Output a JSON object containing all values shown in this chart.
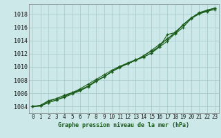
{
  "title": "Graphe pression niveau de la mer (hPa)",
  "bg_color": "#cce8e8",
  "grid_color": "#aacccc",
  "line_color": "#1a5c1a",
  "ylim": [
    1003.0,
    1019.5
  ],
  "xlim": [
    -0.5,
    23.5
  ],
  "yticks": [
    1004,
    1006,
    1008,
    1010,
    1012,
    1014,
    1016,
    1018
  ],
  "x_labels": [
    "0",
    "1",
    "2",
    "3",
    "4",
    "5",
    "6",
    "7",
    "8",
    "9",
    "10",
    "11",
    "12",
    "13",
    "14",
    "15",
    "16",
    "17",
    "18",
    "19",
    "20",
    "21",
    "22",
    "23"
  ],
  "series": [
    [
      1004.0,
      1004.1,
      1004.6,
      1005.0,
      1005.4,
      1005.9,
      1006.4,
      1007.0,
      1007.8,
      1008.5,
      1009.3,
      1009.9,
      1010.5,
      1011.0,
      1011.5,
      1012.1,
      1013.2,
      1014.3,
      1015.0,
      1016.0,
      1017.3,
      1018.0,
      1018.4,
      1018.7
    ],
    [
      1004.0,
      1004.1,
      1004.6,
      1005.0,
      1005.5,
      1006.1,
      1006.7,
      1007.4,
      1008.1,
      1008.8,
      1009.5,
      1010.1,
      1010.6,
      1011.1,
      1011.5,
      1012.1,
      1013.0,
      1013.9,
      1015.1,
      1016.4,
      1017.4,
      1018.2,
      1018.6,
      1018.9
    ],
    [
      1004.0,
      1004.2,
      1004.8,
      1005.2,
      1005.7,
      1006.1,
      1006.5,
      1007.1,
      1007.9,
      1008.5,
      1009.3,
      1010.0,
      1010.5,
      1011.0,
      1011.7,
      1012.4,
      1013.0,
      1014.9,
      1015.2,
      1016.4,
      1017.4,
      1018.1,
      1018.5,
      1018.9
    ],
    [
      1004.0,
      1004.2,
      1004.9,
      1005.2,
      1005.7,
      1006.1,
      1006.5,
      1007.1,
      1007.9,
      1008.5,
      1009.3,
      1010.0,
      1010.5,
      1011.0,
      1011.7,
      1012.5,
      1013.4,
      1014.2,
      1015.3,
      1016.3,
      1017.4,
      1018.1,
      1018.5,
      1018.9
    ]
  ],
  "title_fontsize": 6.0,
  "tick_fontsize": 5.5,
  "ylabel_fontsize": 6.0
}
